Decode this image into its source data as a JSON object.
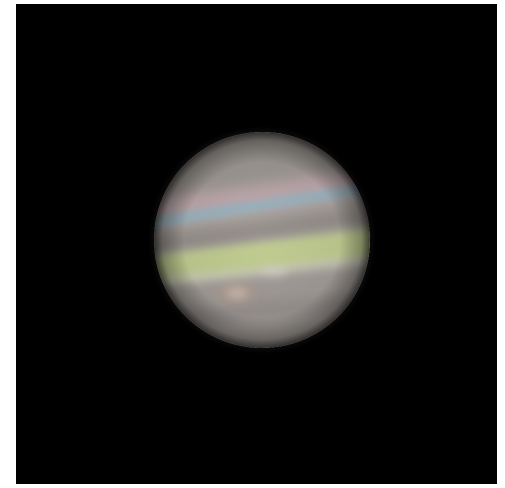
{
  "image": {
    "subject": "planet",
    "background_color": "#000000",
    "frame_color": "#ffffff",
    "colors": {
      "body_base": "#a9a49e",
      "band_green": "#c4d48e",
      "band_blue": "#8fb8c9",
      "band_pink": "#c9a9b3",
      "band_dark": "#8d8683",
      "spot": "#b39e92"
    }
  }
}
